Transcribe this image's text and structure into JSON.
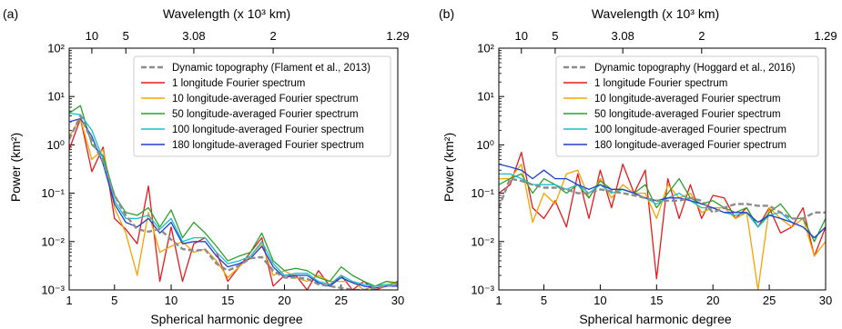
{
  "panels": [
    {
      "label": "(a)"
    },
    {
      "label": "(b)"
    }
  ],
  "chart_data": [
    {
      "type": "line",
      "panel_label": "(a)",
      "xlabel": "Spherical harmonic degree",
      "ylabel": "Power (km²)",
      "top_axis_label": "Wavelength (x 10³ km)",
      "x_ticks": [
        "1",
        "5",
        "10",
        "15",
        "20",
        "25",
        "30"
      ],
      "y_ticks": [
        "10⁻³",
        "10⁻²",
        "10⁻¹",
        "10⁰",
        "10¹",
        "10²"
      ],
      "top_ticks": [
        {
          "degree": 3,
          "label": "10"
        },
        {
          "degree": 6,
          "label": "5"
        },
        {
          "degree": 12,
          "label": "3.08"
        },
        {
          "degree": 19,
          "label": "2"
        },
        {
          "degree": 30,
          "label": "1.29"
        }
      ],
      "xlim": [
        1,
        30
      ],
      "ylim": [
        0.001,
        100
      ],
      "yscale": "log",
      "legend_position": "top-right",
      "x": [
        1,
        2,
        3,
        4,
        5,
        6,
        7,
        8,
        9,
        10,
        11,
        12,
        13,
        14,
        15,
        16,
        17,
        18,
        19,
        20,
        21,
        22,
        23,
        24,
        25,
        26,
        27,
        28,
        29,
        30
      ],
      "series": [
        {
          "name": "Dynamic topography (Flament et al., 2013)",
          "color": "#8c8c8c",
          "dashed": true,
          "values": [
            1.3,
            4.0,
            1.2,
            0.45,
            0.09,
            0.035,
            0.018,
            0.016,
            0.018,
            0.011,
            0.007,
            0.0065,
            0.0068,
            0.0035,
            0.0025,
            0.0032,
            0.0045,
            0.0048,
            0.0025,
            0.0018,
            0.0018,
            0.0017,
            0.0013,
            0.0012,
            0.0011,
            0.001,
            0.001,
            0.0011,
            0.0012,
            0.0013
          ]
        },
        {
          "name": "1 longitude Fourier spectrum",
          "color": "#e41a1c",
          "values": [
            0.8,
            3.5,
            0.28,
            0.9,
            0.03,
            0.018,
            0.009,
            0.14,
            0.0015,
            0.02,
            0.0015,
            0.009,
            0.012,
            0.006,
            0.0015,
            0.003,
            0.006,
            0.012,
            0.0012,
            0.002,
            0.002,
            0.0008,
            0.0025,
            0.0012,
            0.002,
            0.001,
            0.0015,
            0.001,
            0.0012,
            0.0015
          ]
        },
        {
          "name": "10 longitude-averaged Fourier spectrum",
          "color": "#f5a300",
          "values": [
            1.5,
            3.5,
            0.5,
            0.8,
            0.05,
            0.015,
            0.002,
            0.04,
            0.006,
            0.008,
            0.01,
            0.006,
            0.007,
            0.004,
            0.0018,
            0.003,
            0.005,
            0.009,
            0.002,
            0.0025,
            0.0018,
            0.0015,
            0.002,
            0.0015,
            0.0015,
            0.0015,
            0.001,
            0.0012,
            0.0015,
            0.0013
          ]
        },
        {
          "name": "50 longitude-averaged Fourier spectrum",
          "color": "#2ca02c",
          "values": [
            4.5,
            6.5,
            1.0,
            0.6,
            0.09,
            0.04,
            0.035,
            0.05,
            0.02,
            0.045,
            0.012,
            0.025,
            0.015,
            0.008,
            0.004,
            0.005,
            0.006,
            0.015,
            0.004,
            0.0025,
            0.0028,
            0.0025,
            0.0018,
            0.0015,
            0.003,
            0.002,
            0.0015,
            0.0012,
            0.0015,
            0.0014
          ]
        },
        {
          "name": "100 longitude-averaged Fourier spectrum",
          "color": "#17becf",
          "values": [
            4.5,
            4.2,
            2.0,
            0.5,
            0.07,
            0.03,
            0.03,
            0.035,
            0.018,
            0.03,
            0.01,
            0.012,
            0.012,
            0.006,
            0.0035,
            0.004,
            0.005,
            0.01,
            0.0035,
            0.002,
            0.0022,
            0.0022,
            0.0015,
            0.0013,
            0.002,
            0.0015,
            0.0013,
            0.0012,
            0.0013,
            0.0013
          ]
        },
        {
          "name": "180 longitude-averaged Fourier spectrum",
          "color": "#1f3fd6",
          "values": [
            3.0,
            3.5,
            1.5,
            0.4,
            0.06,
            0.025,
            0.02,
            0.03,
            0.015,
            0.025,
            0.009,
            0.01,
            0.01,
            0.005,
            0.003,
            0.0035,
            0.0045,
            0.008,
            0.003,
            0.0018,
            0.002,
            0.002,
            0.0014,
            0.0012,
            0.0018,
            0.0014,
            0.0012,
            0.0011,
            0.0012,
            0.0012
          ]
        }
      ]
    },
    {
      "type": "line",
      "panel_label": "(b)",
      "xlabel": "Spherical harmonic degree",
      "ylabel": "Power (km²)",
      "top_axis_label": "Wavelength (x 10³ km)",
      "x_ticks": [
        "1",
        "5",
        "10",
        "15",
        "20",
        "25",
        "30"
      ],
      "y_ticks": [
        "10⁻³",
        "10⁻²",
        "10⁻¹",
        "10⁰",
        "10¹",
        "10²"
      ],
      "top_ticks": [
        {
          "degree": 3,
          "label": "10"
        },
        {
          "degree": 6,
          "label": "5"
        },
        {
          "degree": 12,
          "label": "3.08"
        },
        {
          "degree": 19,
          "label": "2"
        },
        {
          "degree": 30,
          "label": "1.29"
        }
      ],
      "xlim": [
        1,
        30
      ],
      "ylim": [
        0.001,
        100
      ],
      "yscale": "log",
      "legend_position": "top-right",
      "x": [
        1,
        2,
        3,
        4,
        5,
        6,
        7,
        8,
        9,
        10,
        11,
        12,
        13,
        14,
        15,
        16,
        17,
        18,
        19,
        20,
        21,
        22,
        23,
        24,
        25,
        26,
        27,
        28,
        29,
        30
      ],
      "series": [
        {
          "name": "Dynamic topography (Hoggard et al., 2016)",
          "color": "#8c8c8c",
          "dashed": true,
          "values": [
            0.05,
            0.2,
            0.18,
            0.15,
            0.13,
            0.13,
            0.12,
            0.1,
            0.1,
            0.12,
            0.11,
            0.1,
            0.09,
            0.08,
            0.07,
            0.07,
            0.07,
            0.08,
            0.07,
            0.04,
            0.05,
            0.06,
            0.06,
            0.055,
            0.055,
            0.04,
            0.03,
            0.03,
            0.04,
            0.04
          ]
        },
        {
          "name": "1 longitude Fourier spectrum",
          "color": "#e41a1c",
          "values": [
            0.1,
            0.15,
            0.7,
            0.05,
            0.03,
            0.07,
            0.02,
            0.25,
            0.03,
            0.3,
            0.05,
            0.4,
            0.1,
            0.3,
            0.0017,
            0.2,
            0.03,
            0.15,
            0.03,
            0.09,
            0.08,
            0.03,
            0.05,
            0.02,
            0.05,
            0.015,
            0.02,
            0.05,
            0.005,
            0.02
          ]
        },
        {
          "name": "10 longitude-averaged Fourier spectrum",
          "color": "#f5a300",
          "values": [
            0.2,
            0.2,
            0.4,
            0.025,
            0.1,
            0.06,
            0.25,
            0.3,
            0.08,
            0.2,
            0.08,
            0.15,
            0.1,
            0.1,
            0.03,
            0.15,
            0.08,
            0.1,
            0.04,
            0.05,
            0.05,
            0.03,
            0.04,
            0.001,
            0.05,
            0.03,
            0.02,
            0.03,
            0.005,
            0.01
          ]
        },
        {
          "name": "50 longitude-averaged Fourier spectrum",
          "color": "#2ca02c",
          "values": [
            0.15,
            0.2,
            0.25,
            0.1,
            0.2,
            0.15,
            0.1,
            0.15,
            0.08,
            0.18,
            0.12,
            0.12,
            0.1,
            0.15,
            0.05,
            0.1,
            0.2,
            0.08,
            0.06,
            0.07,
            0.05,
            0.04,
            0.05,
            0.02,
            0.04,
            0.06,
            0.03,
            0.03,
            0.01,
            0.03
          ]
        },
        {
          "name": "100 longitude-averaged Fourier spectrum",
          "color": "#17becf",
          "values": [
            0.25,
            0.25,
            0.2,
            0.15,
            0.15,
            0.15,
            0.12,
            0.15,
            0.1,
            0.15,
            0.1,
            0.12,
            0.1,
            0.08,
            0.06,
            0.08,
            0.1,
            0.07,
            0.05,
            0.05,
            0.04,
            0.035,
            0.04,
            0.02,
            0.035,
            0.04,
            0.025,
            0.02,
            0.012,
            0.02
          ]
        },
        {
          "name": "180 longitude-averaged Fourier spectrum",
          "color": "#1f3fd6",
          "values": [
            0.4,
            0.35,
            0.3,
            0.2,
            0.3,
            0.2,
            0.2,
            0.15,
            0.12,
            0.15,
            0.12,
            0.12,
            0.1,
            0.08,
            0.07,
            0.08,
            0.08,
            0.07,
            0.06,
            0.05,
            0.04,
            0.04,
            0.04,
            0.025,
            0.035,
            0.03,
            0.025,
            0.02,
            0.012,
            0.02
          ]
        }
      ]
    }
  ]
}
